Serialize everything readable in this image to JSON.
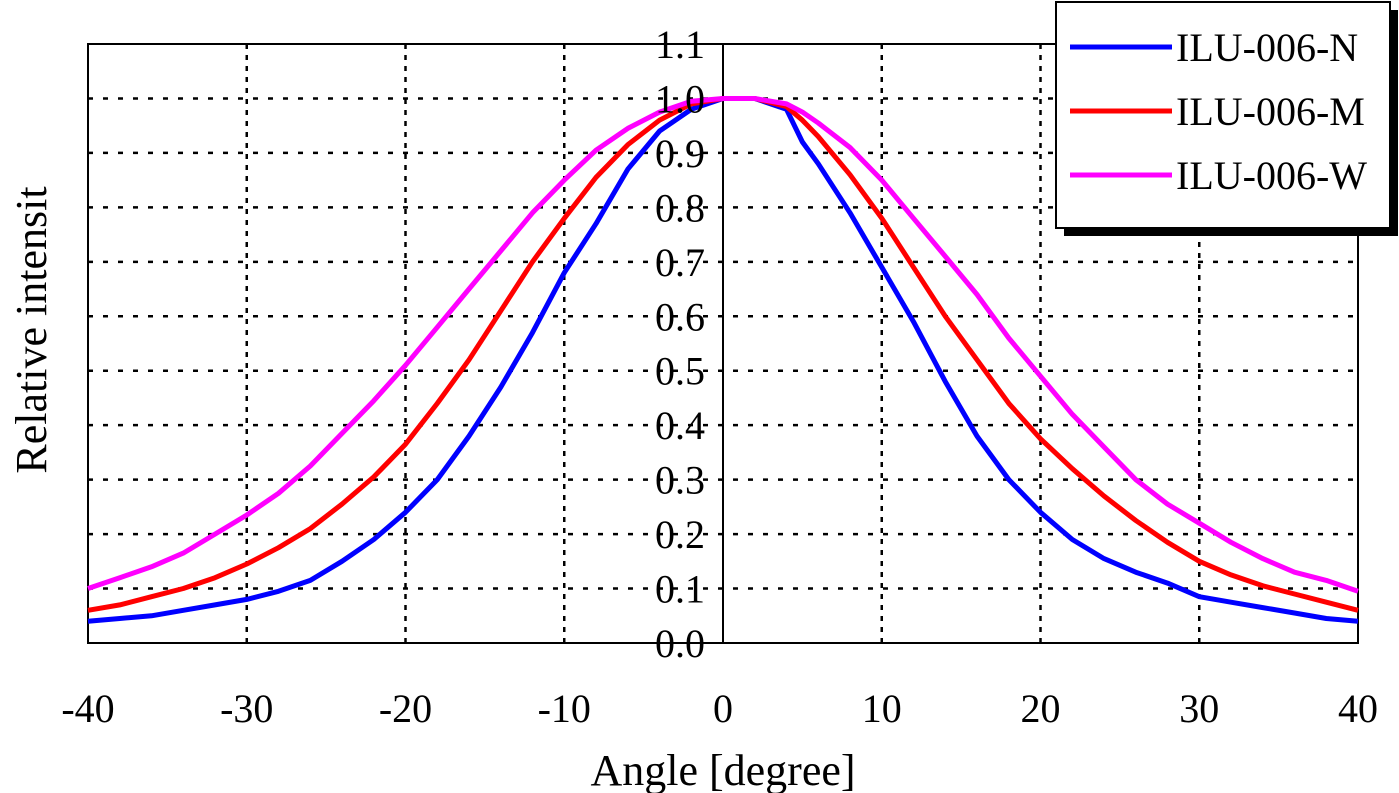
{
  "chart_data": {
    "type": "line",
    "xlabel": "Angle [degree]",
    "ylabel": "Relative intensit",
    "xlim": [
      -40,
      40
    ],
    "ylim": [
      0,
      1.1
    ],
    "x_ticks": [
      "-40",
      "-30",
      "-20",
      "-10",
      "0",
      "10",
      "20",
      "30",
      "40"
    ],
    "y_ticks": [
      "0.0",
      "0.1",
      "0.2",
      "0.3",
      "0.4",
      "0.5",
      "0.6",
      "0.7",
      "0.8",
      "0.9",
      "1.0",
      "1.1"
    ],
    "grid": true,
    "legend_position": "top-right",
    "x": [
      -40,
      -38,
      -36,
      -34,
      -32,
      -30,
      -28,
      -26,
      -24,
      -22,
      -20,
      -18,
      -16,
      -14,
      -12,
      -10,
      -8,
      -6,
      -4,
      -2,
      0,
      2,
      4,
      5,
      6,
      8,
      10,
      12,
      14,
      16,
      18,
      20,
      22,
      24,
      26,
      28,
      30,
      32,
      34,
      36,
      38,
      40
    ],
    "series": [
      {
        "name": "ILU-006-N",
        "color": "#0000ff",
        "values": [
          0.04,
          0.045,
          0.05,
          0.06,
          0.07,
          0.08,
          0.095,
          0.115,
          0.15,
          0.19,
          0.24,
          0.3,
          0.38,
          0.47,
          0.57,
          0.68,
          0.77,
          0.87,
          0.94,
          0.98,
          1.0,
          1.0,
          0.98,
          0.92,
          0.88,
          0.79,
          0.69,
          0.59,
          0.48,
          0.38,
          0.3,
          0.24,
          0.19,
          0.155,
          0.13,
          0.11,
          0.085,
          0.075,
          0.065,
          0.055,
          0.045,
          0.04
        ]
      },
      {
        "name": "ILU-006-M",
        "color": "#ff0000",
        "values": [
          0.06,
          0.07,
          0.085,
          0.1,
          0.12,
          0.145,
          0.175,
          0.21,
          0.255,
          0.305,
          0.365,
          0.44,
          0.52,
          0.61,
          0.7,
          0.78,
          0.855,
          0.915,
          0.96,
          0.99,
          1.0,
          1.0,
          0.985,
          0.96,
          0.93,
          0.86,
          0.78,
          0.69,
          0.6,
          0.52,
          0.44,
          0.375,
          0.32,
          0.27,
          0.225,
          0.185,
          0.15,
          0.125,
          0.105,
          0.09,
          0.075,
          0.06
        ]
      },
      {
        "name": "ILU-006-W",
        "color": "#ff00ff",
        "values": [
          0.1,
          0.12,
          0.14,
          0.165,
          0.2,
          0.235,
          0.275,
          0.325,
          0.385,
          0.445,
          0.51,
          0.58,
          0.65,
          0.72,
          0.79,
          0.85,
          0.905,
          0.945,
          0.975,
          0.995,
          1.0,
          1.0,
          0.99,
          0.975,
          0.955,
          0.91,
          0.85,
          0.78,
          0.71,
          0.64,
          0.56,
          0.49,
          0.42,
          0.36,
          0.3,
          0.255,
          0.22,
          0.185,
          0.155,
          0.13,
          0.115,
          0.095
        ]
      }
    ]
  }
}
